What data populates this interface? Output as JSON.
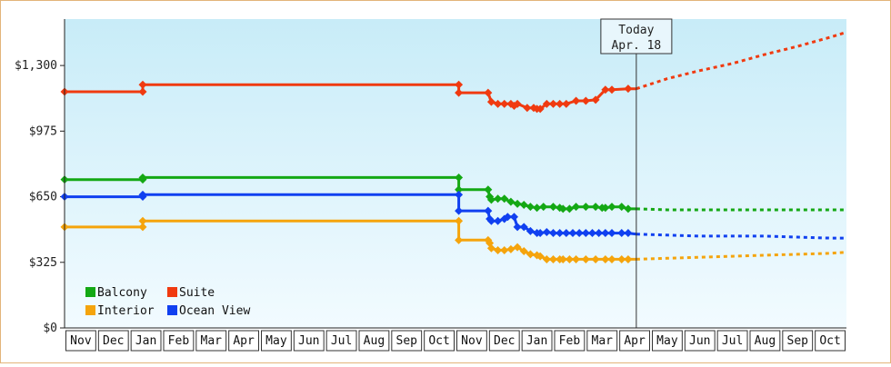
{
  "chart_data": {
    "type": "line",
    "y_ticks": [
      {
        "value": 0,
        "label": "$0"
      },
      {
        "value": 325,
        "label": "$325"
      },
      {
        "value": 650,
        "label": "$650"
      },
      {
        "value": 975,
        "label": "$975"
      },
      {
        "value": 1300,
        "label": "$1,300"
      }
    ],
    "ylim": [
      0,
      1530
    ],
    "x_months": [
      "Nov",
      "Dec",
      "Jan",
      "Feb",
      "Mar",
      "Apr",
      "May",
      "Jun",
      "Jul",
      "Aug",
      "Sep",
      "Oct",
      "Nov",
      "Dec",
      "Jan",
      "Feb",
      "Mar",
      "Apr",
      "May",
      "Jun",
      "Jul",
      "Aug",
      "Sep",
      "Oct"
    ],
    "today": {
      "line1": "Today",
      "line2": "Apr. 18",
      "x": 17.55
    },
    "legend": [
      {
        "name": "Balcony",
        "color": "#14a814"
      },
      {
        "name": "Suite",
        "color": "#f03a10"
      },
      {
        "name": "Interior",
        "color": "#f5a40c"
      },
      {
        "name": "Ocean View",
        "color": "#1040f0"
      }
    ],
    "series": [
      {
        "name": "Suite",
        "color": "#f03a10",
        "points": [
          [
            0,
            1170
          ],
          [
            2.4,
            1170
          ],
          [
            2.4,
            1205
          ],
          [
            12.1,
            1205
          ],
          [
            12.1,
            1165
          ],
          [
            13,
            1165
          ],
          [
            13.1,
            1120
          ],
          [
            13.3,
            1110
          ],
          [
            13.5,
            1110
          ],
          [
            13.7,
            1110
          ],
          [
            13.8,
            1100
          ],
          [
            13.9,
            1110
          ],
          [
            14.2,
            1090
          ],
          [
            14.4,
            1090
          ],
          [
            14.5,
            1085
          ],
          [
            14.6,
            1085
          ],
          [
            14.8,
            1110
          ],
          [
            15.0,
            1110
          ],
          [
            15.2,
            1110
          ],
          [
            15.4,
            1110
          ],
          [
            15.7,
            1125
          ],
          [
            16.0,
            1125
          ],
          [
            16.3,
            1130
          ],
          [
            16.6,
            1180
          ],
          [
            16.8,
            1180
          ],
          [
            17.3,
            1185
          ],
          [
            17.55,
            1185
          ]
        ],
        "forecast": [
          [
            17.55,
            1185
          ],
          [
            18.5,
            1235
          ],
          [
            19.5,
            1275
          ],
          [
            20.5,
            1310
          ],
          [
            21.5,
            1355
          ],
          [
            22.5,
            1395
          ],
          [
            23.5,
            1440
          ],
          [
            24,
            1465
          ]
        ]
      },
      {
        "name": "Balcony",
        "color": "#14a814",
        "points": [
          [
            0,
            735
          ],
          [
            2.4,
            735
          ],
          [
            2.4,
            745
          ],
          [
            12.1,
            745
          ],
          [
            12.1,
            685
          ],
          [
            13,
            685
          ],
          [
            13.05,
            650
          ],
          [
            13.1,
            635
          ],
          [
            13.3,
            640
          ],
          [
            13.5,
            640
          ],
          [
            13.7,
            625
          ],
          [
            13.9,
            615
          ],
          [
            14.1,
            610
          ],
          [
            14.3,
            600
          ],
          [
            14.5,
            595
          ],
          [
            14.7,
            600
          ],
          [
            15,
            600
          ],
          [
            15.2,
            595
          ],
          [
            15.3,
            590
          ],
          [
            15.5,
            590
          ],
          [
            15.7,
            600
          ],
          [
            16,
            600
          ],
          [
            16.3,
            600
          ],
          [
            16.5,
            595
          ],
          [
            16.6,
            595
          ],
          [
            16.8,
            600
          ],
          [
            17.1,
            600
          ],
          [
            17.3,
            590
          ],
          [
            17.55,
            590
          ]
        ],
        "forecast": [
          [
            17.55,
            590
          ],
          [
            18.5,
            585
          ],
          [
            19.5,
            585
          ],
          [
            20.5,
            585
          ],
          [
            21.5,
            585
          ],
          [
            22.5,
            585
          ],
          [
            23.5,
            585
          ],
          [
            24,
            585
          ]
        ]
      },
      {
        "name": "Ocean View",
        "color": "#1040f0",
        "points": [
          [
            0,
            650
          ],
          [
            2.4,
            650
          ],
          [
            2.4,
            660
          ],
          [
            12.1,
            660
          ],
          [
            12.1,
            580
          ],
          [
            13,
            580
          ],
          [
            13.05,
            540
          ],
          [
            13.1,
            530
          ],
          [
            13.3,
            530
          ],
          [
            13.5,
            540
          ],
          [
            13.6,
            550
          ],
          [
            13.8,
            550
          ],
          [
            13.9,
            500
          ],
          [
            14.1,
            500
          ],
          [
            14.3,
            480
          ],
          [
            14.5,
            470
          ],
          [
            14.6,
            470
          ],
          [
            14.8,
            475
          ],
          [
            15,
            470
          ],
          [
            15.2,
            470
          ],
          [
            15.4,
            470
          ],
          [
            15.6,
            470
          ],
          [
            15.8,
            470
          ],
          [
            16,
            470
          ],
          [
            16.2,
            470
          ],
          [
            16.4,
            470
          ],
          [
            16.6,
            470
          ],
          [
            16.8,
            470
          ],
          [
            17.1,
            470
          ],
          [
            17.3,
            470
          ],
          [
            17.55,
            465
          ]
        ],
        "forecast": [
          [
            17.55,
            465
          ],
          [
            18.5,
            460
          ],
          [
            19.5,
            455
          ],
          [
            20.5,
            455
          ],
          [
            21.5,
            455
          ],
          [
            22.5,
            450
          ],
          [
            23.5,
            445
          ],
          [
            24,
            445
          ]
        ]
      },
      {
        "name": "Interior",
        "color": "#f5a40c",
        "points": [
          [
            0,
            500
          ],
          [
            2.4,
            500
          ],
          [
            2.4,
            530
          ],
          [
            12.1,
            530
          ],
          [
            12.1,
            435
          ],
          [
            13,
            435
          ],
          [
            13.05,
            420
          ],
          [
            13.1,
            395
          ],
          [
            13.3,
            385
          ],
          [
            13.5,
            385
          ],
          [
            13.7,
            390
          ],
          [
            13.9,
            400
          ],
          [
            14.1,
            380
          ],
          [
            14.3,
            365
          ],
          [
            14.5,
            360
          ],
          [
            14.6,
            355
          ],
          [
            14.8,
            340
          ],
          [
            15,
            340
          ],
          [
            15.2,
            340
          ],
          [
            15.3,
            340
          ],
          [
            15.5,
            340
          ],
          [
            15.7,
            340
          ],
          [
            16,
            340
          ],
          [
            16.3,
            340
          ],
          [
            16.6,
            340
          ],
          [
            16.8,
            340
          ],
          [
            17.1,
            340
          ],
          [
            17.3,
            340
          ],
          [
            17.55,
            340
          ]
        ],
        "forecast": [
          [
            17.55,
            340
          ],
          [
            18.5,
            345
          ],
          [
            19.5,
            350
          ],
          [
            20.5,
            355
          ],
          [
            21.5,
            360
          ],
          [
            22.5,
            365
          ],
          [
            23.5,
            370
          ],
          [
            24,
            375
          ]
        ]
      }
    ]
  }
}
